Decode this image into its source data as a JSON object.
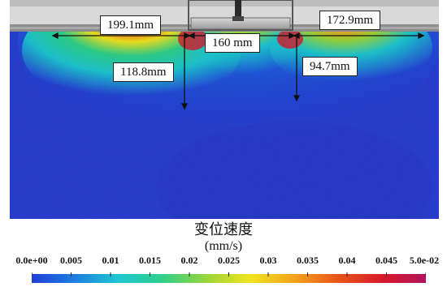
{
  "dimensions": {
    "left_width": "199.1mm",
    "right_width": "172.9mm",
    "center_width": "160 mm",
    "left_depth": "118.8mm",
    "right_depth": "94.7mm"
  },
  "legend": {
    "title": "变位速度",
    "unit": "(mm/s)",
    "min": 0,
    "max": 0.05,
    "ticks": [
      "0.0e+00",
      "0.005",
      "0.01",
      "0.015",
      "0.02",
      "0.025",
      "0.03",
      "0.035",
      "0.04",
      "0.045",
      "5.0e-02"
    ],
    "colors": [
      "#1f3fd8",
      "#1e7fe0",
      "#1fc7d0",
      "#2fd08a",
      "#9ad63a",
      "#f2e31e",
      "#f3a21c",
      "#e85418",
      "#d81a2a",
      "#b0145c"
    ]
  }
}
